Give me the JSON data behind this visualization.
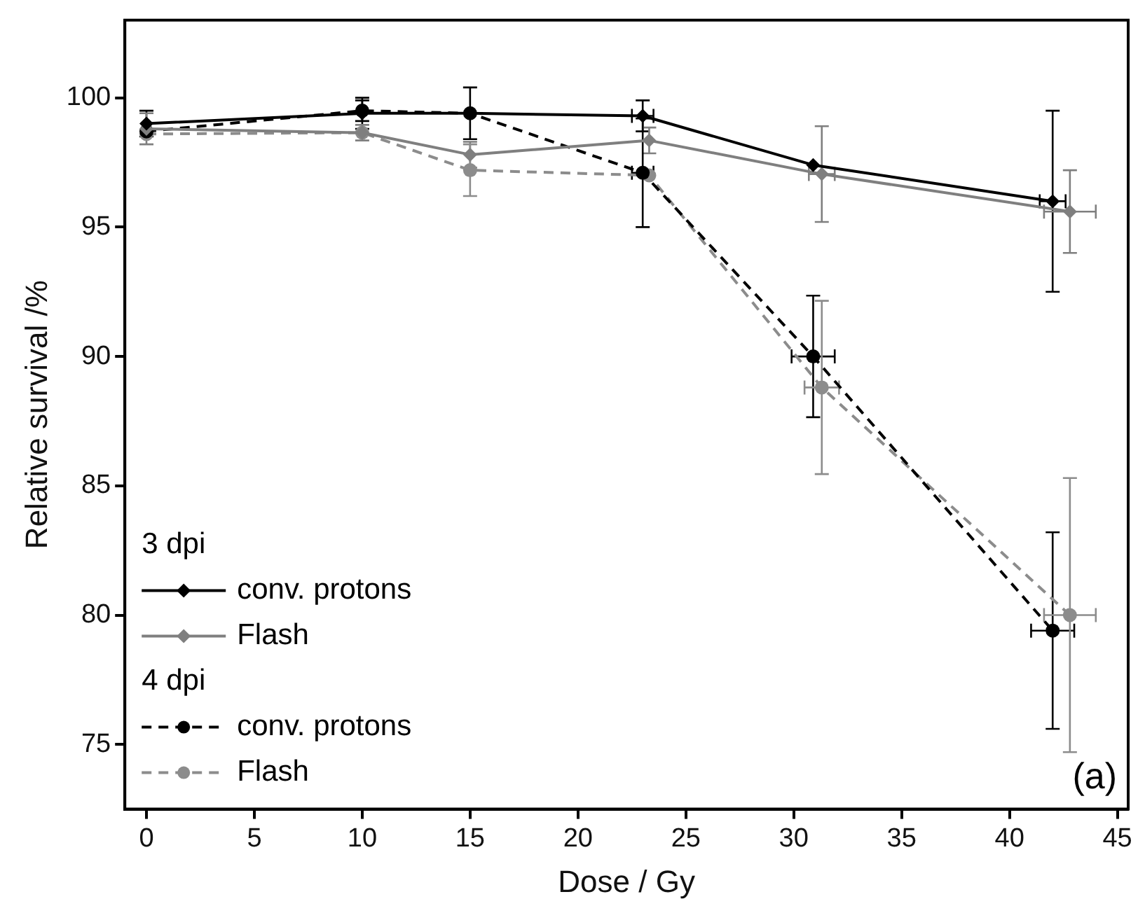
{
  "chart_data": {
    "type": "line",
    "xlabel": "Dose / Gy",
    "ylabel": "Relative survival /%",
    "annotations": [
      "3 dpi",
      "4 dpi",
      "(a)"
    ],
    "xlim": [
      -1,
      45.5
    ],
    "xticks": [
      0,
      5,
      10,
      15,
      20,
      25,
      30,
      35,
      40,
      45
    ],
    "ylim": [
      72.5,
      103
    ],
    "yticks": [
      75,
      80,
      85,
      90,
      95,
      100
    ],
    "grid": false,
    "legend": "bottom left",
    "series": [
      {
        "name": "conv. protons",
        "color": "#000000",
        "marker": "diamond",
        "line_style": "solid",
        "x": [
          0,
          10,
          15,
          23,
          30.9,
          42
        ],
        "values": [
          99.0,
          99.4,
          99.4,
          99.3,
          97.4,
          96.0
        ],
        "errors": [
          0.5,
          0.6,
          1.0,
          0.6,
          null,
          3.5
        ],
        "xerrors": [
          null,
          null,
          null,
          0.5,
          null,
          0.6
        ]
      },
      {
        "name": "Flash",
        "color": "#7f7f7f",
        "marker": "diamond",
        "line_style": "solid",
        "x": [
          0,
          10,
          15,
          23.3,
          31.3,
          42.8
        ],
        "values": [
          98.8,
          98.65,
          97.8,
          98.35,
          97.05,
          95.6
        ],
        "errors": [
          0.6,
          0.3,
          0.5,
          0.5,
          1.85,
          1.6
        ],
        "xerrors": [
          null,
          null,
          null,
          null,
          0.6,
          1.2
        ]
      },
      {
        "name": "conv. protons",
        "color": "#000000",
        "marker": "circle",
        "line_style": "dashed",
        "x": [
          0,
          10,
          15,
          23,
          30.9,
          42
        ],
        "values": [
          98.7,
          99.5,
          99.4,
          97.1,
          90.0,
          79.4
        ],
        "errors": [
          null,
          0.4,
          null,
          2.1,
          2.35,
          3.8
        ],
        "xerrors": [
          null,
          null,
          null,
          0.5,
          1.0,
          1.0
        ]
      },
      {
        "name": "Flash",
        "color": "#8c8c8c",
        "marker": "circle",
        "line_style": "dashed",
        "x": [
          0,
          10,
          15,
          23.3,
          31.3,
          42.8
        ],
        "values": [
          98.6,
          98.65,
          97.2,
          97.0,
          88.8,
          80.0
        ],
        "errors": [
          null,
          null,
          1.0,
          null,
          3.35,
          5.3
        ],
        "xerrors": [
          null,
          null,
          null,
          null,
          0.8,
          1.2
        ]
      }
    ]
  }
}
